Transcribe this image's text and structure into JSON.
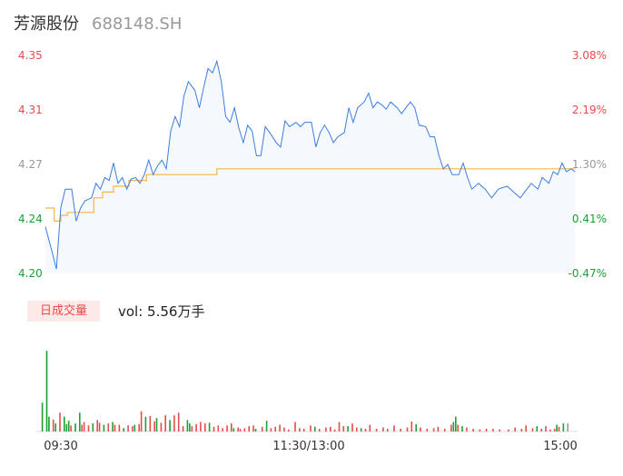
{
  "header": {
    "name": "芳源股份",
    "code": "688148.SH"
  },
  "colors": {
    "price_line": "#3b7ddd",
    "price_fill": "#f5f8fd",
    "avg_line": "#f5b54a",
    "up": "#e94b4b",
    "down": "#1aa033",
    "neutral": "#999999"
  },
  "chart_data": {
    "type": "line",
    "y_left_ticks": [
      "4.35",
      "4.31",
      "4.27",
      "4.24",
      "4.20"
    ],
    "y_right_ticks": [
      "3.08%",
      "2.19%",
      "1.30%",
      "0.41%",
      "-0.47%"
    ],
    "x_ticks": [
      "09:30",
      "11:30/13:00",
      "15:00"
    ],
    "ylim": [
      4.2,
      4.35
    ],
    "minutes": 241,
    "series": [
      {
        "id": "price",
        "points": [
          [
            0,
            4.232
          ],
          [
            3,
            4.215
          ],
          [
            5,
            4.203
          ],
          [
            7,
            4.245
          ],
          [
            9,
            4.258
          ],
          [
            12,
            4.258
          ],
          [
            14,
            4.236
          ],
          [
            16,
            4.245
          ],
          [
            18,
            4.25
          ],
          [
            21,
            4.252
          ],
          [
            23,
            4.262
          ],
          [
            25,
            4.258
          ],
          [
            27,
            4.266
          ],
          [
            29,
            4.264
          ],
          [
            31,
            4.276
          ],
          [
            33,
            4.262
          ],
          [
            35,
            4.266
          ],
          [
            37,
            4.258
          ],
          [
            39,
            4.265
          ],
          [
            41,
            4.266
          ],
          [
            43,
            4.262
          ],
          [
            45,
            4.268
          ],
          [
            47,
            4.278
          ],
          [
            49,
            4.268
          ],
          [
            51,
            4.274
          ],
          [
            53,
            4.278
          ],
          [
            55,
            4.272
          ],
          [
            57,
            4.298
          ],
          [
            59,
            4.308
          ],
          [
            61,
            4.301
          ],
          [
            63,
            4.322
          ],
          [
            65,
            4.332
          ],
          [
            68,
            4.326
          ],
          [
            70,
            4.314
          ],
          [
            72,
            4.328
          ],
          [
            74,
            4.341
          ],
          [
            76,
            4.338
          ],
          [
            78,
            4.346
          ],
          [
            80,
            4.332
          ],
          [
            82,
            4.308
          ],
          [
            84,
            4.304
          ],
          [
            86,
            4.314
          ],
          [
            88,
            4.3
          ],
          [
            90,
            4.29
          ],
          [
            92,
            4.302
          ],
          [
            94,
            4.298
          ],
          [
            96,
            4.281
          ],
          [
            98,
            4.281
          ],
          [
            100,
            4.301
          ],
          [
            102,
            4.297
          ],
          [
            105,
            4.29
          ],
          [
            107,
            4.287
          ],
          [
            109,
            4.305
          ],
          [
            111,
            4.301
          ],
          [
            114,
            4.304
          ],
          [
            116,
            4.301
          ],
          [
            118,
            4.304
          ],
          [
            121,
            4.304
          ],
          [
            123,
            4.287
          ],
          [
            125,
            4.297
          ],
          [
            127,
            4.302
          ],
          [
            129,
            4.297
          ],
          [
            131,
            4.29
          ],
          [
            133,
            4.294
          ],
          [
            136,
            4.297
          ],
          [
            138,
            4.314
          ],
          [
            140,
            4.304
          ],
          [
            142,
            4.314
          ],
          [
            145,
            4.318
          ],
          [
            147,
            4.324
          ],
          [
            149,
            4.314
          ],
          [
            151,
            4.318
          ],
          [
            153,
            4.316
          ],
          [
            155,
            4.313
          ],
          [
            157,
            4.318
          ],
          [
            160,
            4.314
          ],
          [
            162,
            4.31
          ],
          [
            164,
            4.314
          ],
          [
            166,
            4.318
          ],
          [
            168,
            4.314
          ],
          [
            170,
            4.302
          ],
          [
            173,
            4.301
          ],
          [
            175,
            4.294
          ],
          [
            177,
            4.294
          ],
          [
            179,
            4.281
          ],
          [
            181,
            4.272
          ],
          [
            183,
            4.275
          ],
          [
            185,
            4.268
          ],
          [
            188,
            4.268
          ],
          [
            190,
            4.276
          ],
          [
            192,
            4.266
          ],
          [
            194,
            4.258
          ],
          [
            197,
            4.262
          ],
          [
            200,
            4.258
          ],
          [
            203,
            4.252
          ],
          [
            206,
            4.258
          ],
          [
            210,
            4.26
          ],
          [
            213,
            4.256
          ],
          [
            216,
            4.252
          ],
          [
            218,
            4.256
          ],
          [
            221,
            4.262
          ],
          [
            224,
            4.258
          ],
          [
            226,
            4.266
          ],
          [
            229,
            4.262
          ],
          [
            231,
            4.27
          ],
          [
            233,
            4.268
          ],
          [
            235,
            4.276
          ],
          [
            237,
            4.27
          ],
          [
            239,
            4.272
          ],
          [
            241,
            4.27
          ]
        ]
      },
      {
        "id": "average",
        "points": []
      }
    ],
    "volume_bars": [
      {
        "m": 2,
        "v": 43,
        "c": "down"
      },
      {
        "m": 4,
        "v": 120,
        "c": "down"
      },
      {
        "m": 5,
        "v": 22,
        "c": "down"
      },
      {
        "m": 7,
        "v": 18,
        "c": "up"
      },
      {
        "m": 8,
        "v": 12,
        "c": "down"
      },
      {
        "m": 10,
        "v": 28,
        "c": "up"
      },
      {
        "m": 12,
        "v": 22,
        "c": "down"
      },
      {
        "m": 13,
        "v": 11,
        "c": "down"
      },
      {
        "m": 14,
        "v": 16,
        "c": "down"
      },
      {
        "m": 15,
        "v": 9,
        "c": "up"
      },
      {
        "m": 17,
        "v": 12,
        "c": "down"
      },
      {
        "m": 19,
        "v": 28,
        "c": "down"
      },
      {
        "m": 20,
        "v": 10,
        "c": "up"
      },
      {
        "m": 21,
        "v": 14,
        "c": "up"
      },
      {
        "m": 23,
        "v": 9,
        "c": "up"
      },
      {
        "m": 25,
        "v": 12,
        "c": "down"
      },
      {
        "m": 27,
        "v": 17,
        "c": "up"
      },
      {
        "m": 28,
        "v": 13,
        "c": "up"
      },
      {
        "m": 30,
        "v": 10,
        "c": "down"
      },
      {
        "m": 32,
        "v": 12,
        "c": "up"
      },
      {
        "m": 34,
        "v": 14,
        "c": "down"
      },
      {
        "m": 35,
        "v": 10,
        "c": "up"
      },
      {
        "m": 37,
        "v": 10,
        "c": "up"
      },
      {
        "m": 39,
        "v": 5,
        "c": "down"
      },
      {
        "m": 41,
        "v": 9,
        "c": "up"
      },
      {
        "m": 43,
        "v": 8,
        "c": "up"
      },
      {
        "m": 44,
        "v": 10,
        "c": "down"
      },
      {
        "m": 46,
        "v": 11,
        "c": "up"
      },
      {
        "m": 47,
        "v": 30,
        "c": "up"
      },
      {
        "m": 49,
        "v": 22,
        "c": "down"
      },
      {
        "m": 51,
        "v": 23,
        "c": "up"
      },
      {
        "m": 53,
        "v": 15,
        "c": "up"
      },
      {
        "m": 54,
        "v": 20,
        "c": "down"
      },
      {
        "m": 56,
        "v": 13,
        "c": "up"
      },
      {
        "m": 58,
        "v": 24,
        "c": "up"
      },
      {
        "m": 60,
        "v": 17,
        "c": "down"
      },
      {
        "m": 62,
        "v": 24,
        "c": "up"
      },
      {
        "m": 64,
        "v": 28,
        "c": "up"
      },
      {
        "m": 66,
        "v": 8,
        "c": "up"
      },
      {
        "m": 68,
        "v": 17,
        "c": "down"
      },
      {
        "m": 69,
        "v": 12,
        "c": "down"
      },
      {
        "m": 70,
        "v": 8,
        "c": "up"
      },
      {
        "m": 72,
        "v": 11,
        "c": "up"
      },
      {
        "m": 74,
        "v": 14,
        "c": "up"
      },
      {
        "m": 76,
        "v": 12,
        "c": "up"
      },
      {
        "m": 78,
        "v": 13,
        "c": "down"
      },
      {
        "m": 80,
        "v": 7,
        "c": "up"
      },
      {
        "m": 82,
        "v": 9,
        "c": "up"
      },
      {
        "m": 84,
        "v": 5,
        "c": "up"
      },
      {
        "m": 86,
        "v": 9,
        "c": "up"
      },
      {
        "m": 88,
        "v": 12,
        "c": "up"
      },
      {
        "m": 89,
        "v": 5,
        "c": "down"
      },
      {
        "m": 91,
        "v": 6,
        "c": "up"
      },
      {
        "m": 92,
        "v": 4,
        "c": "up"
      },
      {
        "m": 94,
        "v": 5,
        "c": "up"
      },
      {
        "m": 96,
        "v": 8,
        "c": "up"
      },
      {
        "m": 98,
        "v": 9,
        "c": "up"
      },
      {
        "m": 99,
        "v": 4,
        "c": "down"
      },
      {
        "m": 102,
        "v": 7,
        "c": "up"
      },
      {
        "m": 104,
        "v": 16,
        "c": "down"
      },
      {
        "m": 106,
        "v": 5,
        "c": "up"
      },
      {
        "m": 108,
        "v": 7,
        "c": "up"
      },
      {
        "m": 110,
        "v": 10,
        "c": "up"
      },
      {
        "m": 112,
        "v": 6,
        "c": "up"
      },
      {
        "m": 114,
        "v": 3,
        "c": "up"
      },
      {
        "m": 117,
        "v": 14,
        "c": "up"
      },
      {
        "m": 119,
        "v": 5,
        "c": "up"
      },
      {
        "m": 121,
        "v": 4,
        "c": "up"
      },
      {
        "m": 124,
        "v": 9,
        "c": "up"
      },
      {
        "m": 126,
        "v": 7,
        "c": "down"
      },
      {
        "m": 128,
        "v": 4,
        "c": "up"
      },
      {
        "m": 131,
        "v": 6,
        "c": "up"
      },
      {
        "m": 133,
        "v": 7,
        "c": "up"
      },
      {
        "m": 135,
        "v": 3,
        "c": "up"
      },
      {
        "m": 137,
        "v": 14,
        "c": "up"
      },
      {
        "m": 139,
        "v": 8,
        "c": "up"
      },
      {
        "m": 141,
        "v": 8,
        "c": "down"
      },
      {
        "m": 143,
        "v": 12,
        "c": "up"
      },
      {
        "m": 145,
        "v": 6,
        "c": "up"
      },
      {
        "m": 147,
        "v": 5,
        "c": "down"
      },
      {
        "m": 149,
        "v": 4,
        "c": "up"
      },
      {
        "m": 151,
        "v": 10,
        "c": "up"
      },
      {
        "m": 154,
        "v": 4,
        "c": "up"
      },
      {
        "m": 157,
        "v": 6,
        "c": "up"
      },
      {
        "m": 159,
        "v": 4,
        "c": "up"
      },
      {
        "m": 162,
        "v": 9,
        "c": "up"
      },
      {
        "m": 165,
        "v": 4,
        "c": "up"
      },
      {
        "m": 168,
        "v": 6,
        "c": "up"
      },
      {
        "m": 170,
        "v": 15,
        "c": "up"
      },
      {
        "m": 172,
        "v": 11,
        "c": "down"
      },
      {
        "m": 174,
        "v": 6,
        "c": "up"
      },
      {
        "m": 177,
        "v": 4,
        "c": "up"
      },
      {
        "m": 180,
        "v": 5,
        "c": "up"
      },
      {
        "m": 182,
        "v": 7,
        "c": "up"
      },
      {
        "m": 185,
        "v": 4,
        "c": "up"
      },
      {
        "m": 188,
        "v": 10,
        "c": "up"
      },
      {
        "m": 189,
        "v": 14,
        "c": "down"
      },
      {
        "m": 190,
        "v": 22,
        "c": "down"
      },
      {
        "m": 191,
        "v": 10,
        "c": "up"
      },
      {
        "m": 193,
        "v": 8,
        "c": "down"
      },
      {
        "m": 195,
        "v": 6,
        "c": "up"
      },
      {
        "m": 198,
        "v": 4,
        "c": "up"
      },
      {
        "m": 201,
        "v": 3,
        "c": "up"
      },
      {
        "m": 204,
        "v": 4,
        "c": "up"
      },
      {
        "m": 207,
        "v": 4,
        "c": "up"
      },
      {
        "m": 210,
        "v": 3,
        "c": "up"
      },
      {
        "m": 214,
        "v": 3,
        "c": "up"
      },
      {
        "m": 217,
        "v": 6,
        "c": "up"
      },
      {
        "m": 220,
        "v": 4,
        "c": "up"
      },
      {
        "m": 222,
        "v": 9,
        "c": "up"
      },
      {
        "m": 225,
        "v": 5,
        "c": "up"
      },
      {
        "m": 227,
        "v": 8,
        "c": "down"
      },
      {
        "m": 229,
        "v": 4,
        "c": "up"
      },
      {
        "m": 231,
        "v": 8,
        "c": "up"
      },
      {
        "m": 233,
        "v": 3,
        "c": "up"
      },
      {
        "m": 235,
        "v": 4,
        "c": "up"
      },
      {
        "m": 236,
        "v": 10,
        "c": "down"
      },
      {
        "m": 237,
        "v": 7,
        "c": "up"
      },
      {
        "m": 239,
        "v": 12,
        "c": "down"
      },
      {
        "m": 241,
        "v": 12,
        "c": "neutral"
      }
    ],
    "average_steps": [
      [
        0,
        4.245
      ],
      [
        4,
        4.236
      ],
      [
        7,
        4.24
      ],
      [
        10,
        4.242
      ],
      [
        22,
        4.252
      ],
      [
        26,
        4.256
      ],
      [
        31,
        4.26
      ],
      [
        38,
        4.264
      ],
      [
        46,
        4.268
      ],
      [
        78,
        4.272
      ],
      [
        241,
        4.272
      ]
    ]
  },
  "volume": {
    "badge": "日成交量",
    "text": "vol: 5.56万手"
  }
}
